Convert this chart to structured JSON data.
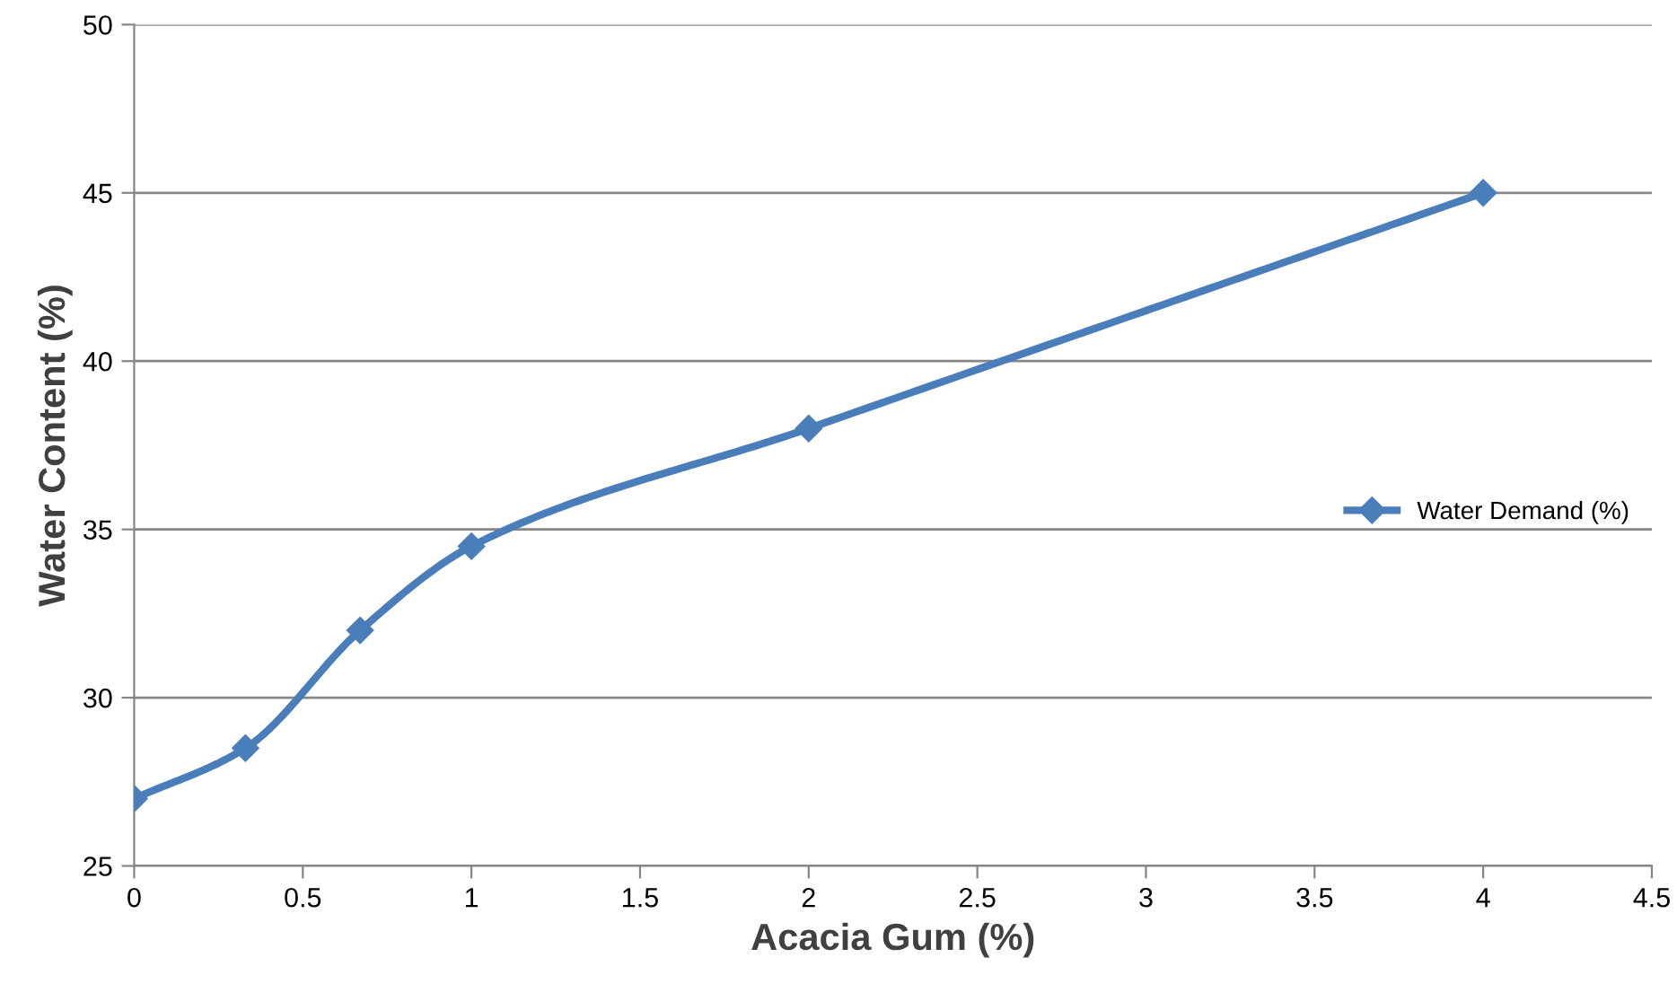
{
  "chart_data": {
    "type": "line",
    "xlabel": "Acacia Gum (%)",
    "ylabel": "Water Content (%)",
    "x": [
      0,
      0.33,
      0.67,
      1,
      2,
      4
    ],
    "series": [
      {
        "name": "Water Demand (%)",
        "color": "#4a7ebb",
        "values": [
          27,
          28.5,
          32,
          34.5,
          38,
          45
        ]
      }
    ],
    "xlim": [
      0,
      4.5
    ],
    "xticks": [
      0,
      0.5,
      1,
      1.5,
      2,
      2.5,
      3,
      3.5,
      4,
      4.5
    ],
    "ylim": [
      25,
      50
    ],
    "yticks": [
      25,
      30,
      35,
      40,
      45,
      50
    ],
    "grid": "y",
    "legend": "right",
    "marker": "diamond",
    "line_style": "solid"
  }
}
